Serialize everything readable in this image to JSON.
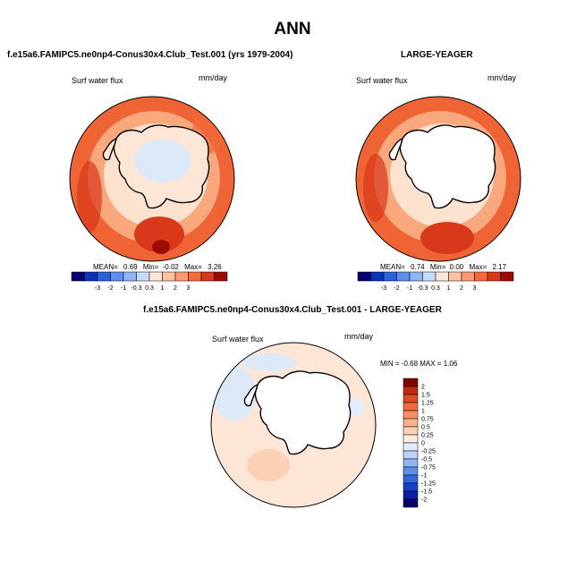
{
  "main_title": "ANN",
  "panels": [
    {
      "title": "f.e15a6.FAMIPC5.ne0np4-Conus30x4.Club_Test.001 (yrs 1979-2004)",
      "left_label": "Surf water flux",
      "right_label": "mm/day",
      "stats": {
        "mean_label": "MEAN=",
        "mean": "0.69",
        "min_label": "Min=",
        "min": "-0.02",
        "max_label": "Max=",
        "max": "3.26"
      },
      "colorbar_ticks": [
        "-3",
        "-2",
        "-1",
        "-0.3",
        "0.3",
        "1",
        "2",
        "3"
      ]
    },
    {
      "title": "LARGE-YEAGER",
      "left_label": "Surf water flux",
      "right_label": "mm/day",
      "stats": {
        "mean_label": "MEAN=",
        "mean": "0.74",
        "min_label": "Min=",
        "min": "0.00",
        "max_label": "Max=",
        "max": "2.17"
      },
      "colorbar_ticks": [
        "-3",
        "-2",
        "-1",
        "-0.3",
        "0.3",
        "1",
        "2",
        "3"
      ]
    },
    {
      "title": "f.e15a6.FAMIPC5.ne0np4-Conus30x4.Club_Test.001 - LARGE-YEAGER",
      "left_label": "Surf water flux",
      "right_label": "mm/day",
      "stats_text": "MIN = -0.68 MAX =  1.06",
      "colorbar_ticks": [
        "2",
        "1.5",
        "1.25",
        "1",
        "0.75",
        "0.5",
        "0.25",
        "0",
        "-0.25",
        "-0.5",
        "-0.75",
        "-1",
        "-1.25",
        "-1.5",
        "-2"
      ]
    }
  ],
  "colors": {
    "diverging_12": [
      "#08006e",
      "#0a33b8",
      "#2b61d6",
      "#5d8ee8",
      "#8fb4f2",
      "#c5dbfa",
      "#fde6d6",
      "#fcc3a4",
      "#f99a70",
      "#f36a3c",
      "#d9381a",
      "#990d00"
    ],
    "diverging_16": [
      "#08006e",
      "#0c1ea8",
      "#1540c8",
      "#3267dc",
      "#5d8ee8",
      "#8fb4f2",
      "#b8d2f8",
      "#e1ecfc",
      "#fdebe0",
      "#fcd0b4",
      "#fab28c",
      "#f79066",
      "#f36a3c",
      "#e04a22",
      "#c22a0e",
      "#7c0600"
    ],
    "ocean_light": "#fde2cf",
    "ocean_mid": "#f9a87e",
    "ocean_strong": "#ef6434",
    "antarctic_blue": "#dceaf8"
  },
  "chart_data": [
    {
      "type": "heatmap",
      "subtype": "polar map (Southern Hemisphere)",
      "title": "f.e15a6.FAMIPC5.ne0np4-Conus30x4.Club_Test.001 (yrs 1979-2004)",
      "variable": "Surf water flux",
      "units": "mm/day",
      "levels": [
        -3,
        -2,
        -1,
        -0.3,
        0.3,
        1,
        2,
        3
      ],
      "mean": 0.69,
      "min": -0.02,
      "max": 3.26
    },
    {
      "type": "heatmap",
      "subtype": "polar map (Southern Hemisphere)",
      "title": "LARGE-YEAGER",
      "variable": "Surf water flux",
      "units": "mm/day",
      "levels": [
        -3,
        -2,
        -1,
        -0.3,
        0.3,
        1,
        2,
        3
      ],
      "mean": 0.74,
      "min": 0.0,
      "max": 2.17
    },
    {
      "type": "heatmap",
      "subtype": "polar map difference (Southern Hemisphere)",
      "title": "f.e15a6.FAMIPC5.ne0np4-Conus30x4.Club_Test.001 - LARGE-YEAGER",
      "variable": "Surf water flux",
      "units": "mm/day",
      "levels": [
        -2,
        -1.5,
        -1.25,
        -1,
        -0.75,
        -0.5,
        -0.25,
        0,
        0.25,
        0.5,
        0.75,
        1,
        1.25,
        1.5,
        2
      ],
      "min": -0.68,
      "max": 1.06
    }
  ]
}
